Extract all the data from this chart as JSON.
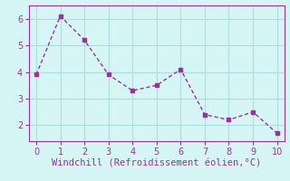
{
  "x": [
    0,
    1,
    2,
    3,
    4,
    5,
    6,
    7,
    8,
    9,
    10
  ],
  "y": [
    3.9,
    6.1,
    5.2,
    3.9,
    3.3,
    3.5,
    4.1,
    2.4,
    2.2,
    2.5,
    1.7
  ],
  "line_color": "#993399",
  "marker_color": "#993399",
  "bg_color": "#d6f5f5",
  "grid_color": "#b0dede",
  "xlabel": "Windchill (Refroidissement éolien,°C)",
  "xlabel_color": "#993399",
  "xlabel_fontsize": 7.5,
  "tick_color": "#993399",
  "tick_fontsize": 7,
  "xlim": [
    -0.3,
    10.3
  ],
  "ylim": [
    1.4,
    6.5
  ],
  "yticks": [
    2,
    3,
    4,
    5,
    6
  ],
  "xticks": [
    0,
    1,
    2,
    3,
    4,
    5,
    6,
    7,
    8,
    9,
    10
  ]
}
